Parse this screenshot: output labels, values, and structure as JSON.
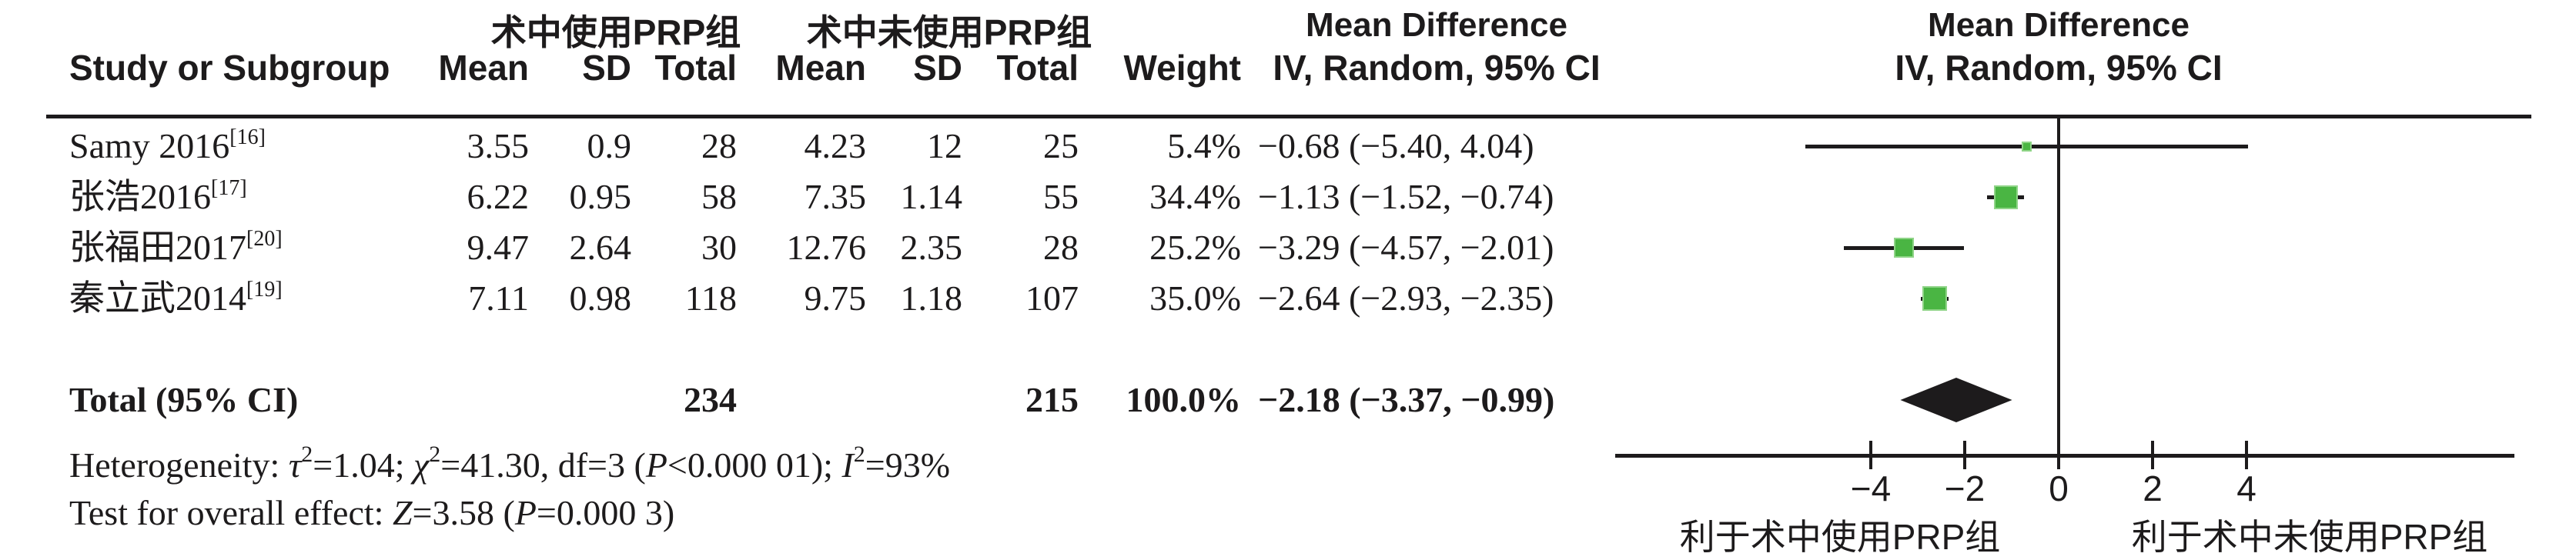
{
  "colors": {
    "square_green": "#4ab543",
    "ink": "#1d1b1c",
    "background": "#ffffff"
  },
  "header": {
    "group1": "术中使用PRP组",
    "group2": "术中未使用PRP组",
    "md_title": "Mean Difference",
    "md_subtitle": "IV, Random, 95% CI",
    "plot_title": "Mean Difference",
    "plot_subtitle": "IV, Random, 95% CI",
    "col_study": "Study or Subgroup",
    "col_mean1": "Mean",
    "col_sd1": "SD",
    "col_total1": "Total",
    "col_mean2": "Mean",
    "col_sd2": "SD",
    "col_total2": "Total",
    "col_weight": "Weight"
  },
  "studies": [
    {
      "label": "Samy 2016",
      "ref": "[16]",
      "mean1": "3.55",
      "sd1": "0.9",
      "total1": "28",
      "mean2": "4.23",
      "sd2": "12",
      "total2": "25",
      "weight": "5.4%",
      "mdci": "−0.68 (−5.40, 4.04)"
    },
    {
      "label": "张浩2016",
      "ref": "[17]",
      "mean1": "6.22",
      "sd1": "0.95",
      "total1": "58",
      "mean2": "7.35",
      "sd2": "1.14",
      "total2": "55",
      "weight": "34.4%",
      "mdci": "−1.13 (−1.52, −0.74)"
    },
    {
      "label": "张福田2017",
      "ref": "[20]",
      "mean1": "9.47",
      "sd1": "2.64",
      "total1": "30",
      "mean2": "12.76",
      "sd2": "2.35",
      "total2": "28",
      "weight": "25.2%",
      "mdci": "−3.29 (−4.57, −2.01)"
    },
    {
      "label": "秦立武2014",
      "ref": "[19]",
      "mean1": "7.11",
      "sd1": "0.98",
      "total1": "118",
      "mean2": "9.75",
      "sd2": "1.18",
      "total2": "107",
      "weight": "35.0%",
      "mdci": "−2.64 (−2.93, −2.35)"
    }
  ],
  "total_row": {
    "label": "Total (95% CI)",
    "total1": "234",
    "total2": "215",
    "weight": "100.0%",
    "mdci": "−2.18 (−3.37, −0.99)"
  },
  "footer": {
    "het": {
      "t1": "Heterogeneity: ",
      "tau": "τ",
      "sup2": "2",
      "t2": "=1.04; ",
      "chi": "χ",
      "t3": "=41.30, df=3 (",
      "p": "P",
      "t4": "<0.000 01); ",
      "i": "I",
      "t5": "=93%"
    },
    "overall": {
      "t1": "Test for overall effect: ",
      "z": "Z",
      "t2": "=3.58 (",
      "p": "P",
      "t3": "=0.000 3)"
    }
  },
  "chart_data": {
    "type": "forest",
    "effect_measure": "Mean Difference, IV, Random, 95% CI",
    "studies": [
      {
        "name": "Samy 2016 [16]",
        "md": -0.68,
        "ci": [
          -5.4,
          4.04
        ],
        "weight_pct": 5.4
      },
      {
        "name": "张浩2016 [17]",
        "md": -1.13,
        "ci": [
          -1.52,
          -0.74
        ],
        "weight_pct": 34.4
      },
      {
        "name": "张福田2017 [20]",
        "md": -3.29,
        "ci": [
          -4.57,
          -2.01
        ],
        "weight_pct": 25.2
      },
      {
        "name": "秦立武2014 [19]",
        "md": -2.64,
        "ci": [
          -2.93,
          -2.35
        ],
        "weight_pct": 35.0
      }
    ],
    "total": {
      "md": -2.18,
      "ci": [
        -3.37,
        -0.99
      ]
    },
    "axis": {
      "ticks": [
        -4,
        -2,
        0,
        2,
        4
      ],
      "tick_labels": [
        "−4",
        "−2",
        "0",
        "2",
        "4"
      ],
      "xlim": [
        -9.45,
        9.7
      ],
      "favor_left": "利于术中使用PRP组",
      "favor_right": "利于术中未使用PRP组"
    }
  }
}
